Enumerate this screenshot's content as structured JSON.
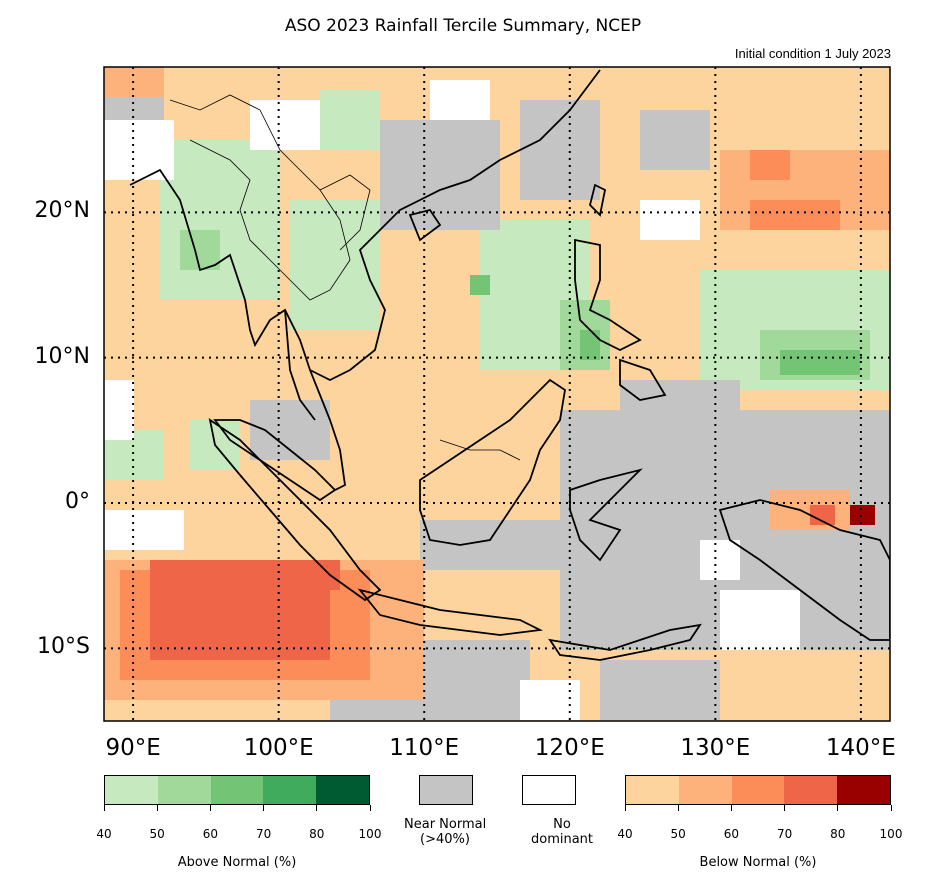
{
  "title": "ASO 2023 Rainfall Tercile Summary, NCEP",
  "subtitle": "Initial condition 1 July 2023",
  "axes": {
    "lat_labels": [
      {
        "value": 20,
        "text": "20°N"
      },
      {
        "value": 10,
        "text": "10°N"
      },
      {
        "value": 0,
        "text": "0°"
      },
      {
        "value": -10,
        "text": "10°S"
      }
    ],
    "lon_labels": [
      {
        "value": 90,
        "text": "90°E"
      },
      {
        "value": 100,
        "text": "100°E"
      },
      {
        "value": 110,
        "text": "110°E"
      },
      {
        "value": 120,
        "text": "120°E"
      },
      {
        "value": 130,
        "text": "130°E"
      },
      {
        "value": 140,
        "text": "140°E"
      }
    ],
    "lon_range": [
      88,
      142
    ],
    "lat_range": [
      -15,
      30
    ],
    "gridlines": "dotted"
  },
  "legend": {
    "above": {
      "caption": "Above Normal (%)",
      "ticks": [
        "40",
        "50",
        "60",
        "70",
        "80",
        "100"
      ],
      "colors": [
        "#c7e9c0",
        "#a1d99b",
        "#74c476",
        "#41ab5d",
        "#005a32"
      ]
    },
    "near": {
      "caption_line1": "Near Normal",
      "caption_line2": "(>40%)",
      "color": "#c4c4c4"
    },
    "none": {
      "caption_line1": "No",
      "caption_line2": "dominant",
      "color": "#ffffff"
    },
    "below": {
      "caption": "Below Normal (%)",
      "ticks": [
        "40",
        "50",
        "60",
        "70",
        "80",
        "100"
      ],
      "colors": [
        "#fdd49e",
        "#fdb27c",
        "#fc8d59",
        "#ef6548",
        "#990000"
      ]
    }
  }
}
